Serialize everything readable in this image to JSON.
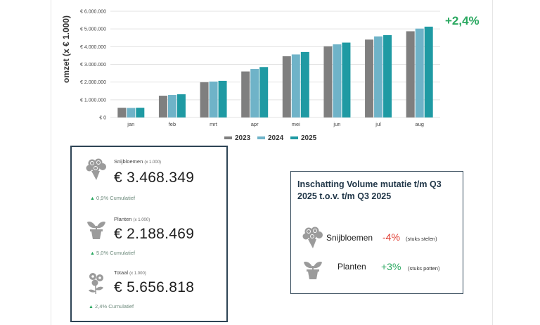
{
  "chart_data": {
    "type": "bar",
    "categories": [
      "jan",
      "feb",
      "mrt",
      "apr",
      "mei",
      "jun",
      "jul",
      "aug"
    ],
    "series": [
      {
        "name": "2023",
        "color": "#7f7f7f",
        "values": [
          550000,
          1230000,
          1990000,
          2600000,
          3460000,
          4020000,
          4400000,
          4870000
        ]
      },
      {
        "name": "2024",
        "color": "#6fb3c8",
        "values": [
          540000,
          1270000,
          2030000,
          2740000,
          3560000,
          4130000,
          4580000,
          5020000
        ]
      },
      {
        "name": "2025",
        "color": "#1f9aa3",
        "values": [
          550000,
          1310000,
          2070000,
          2850000,
          3700000,
          4230000,
          4650000,
          5130000
        ]
      }
    ],
    "ylabel": "omzet (x € 1.000)",
    "ylim": [
      0,
      6000000
    ],
    "yticks": [
      0,
      1000000,
      2000000,
      3000000,
      4000000,
      5000000,
      6000000
    ],
    "ytick_labels": [
      "€ 0",
      "€ 1.000.000",
      "€ 2.000.000",
      "€ 3.000.000",
      "€ 4.000.000",
      "€ 5.000.000",
      "€ 6.000.000"
    ],
    "grid": true,
    "legend_position": "bottom"
  },
  "growth": {
    "label": "+2,4%",
    "color": "#2aa860"
  },
  "summary": {
    "items": [
      {
        "icon": "flower-bouquet-icon",
        "label": "Snijbloemen",
        "unit": "(x 1.000)",
        "value": "€ 3.468.349",
        "change": "0,9%",
        "change_label": "Cumulatief"
      },
      {
        "icon": "potted-plant-icon",
        "label": "Planten",
        "unit": "(x 1.000)",
        "value": "€ 2.188.469",
        "change": "5,0%",
        "change_label": "Cumulatief"
      },
      {
        "icon": "flowers-icon",
        "label": "Totaal",
        "unit": "(x 1.000)",
        "value": "€ 5.656.818",
        "change": "2,4%",
        "change_label": "Cumulatief"
      }
    ]
  },
  "volume": {
    "title_line1": "Inschatting Volume mutatie t/m Q3",
    "title_line2": "2025 t.o.v. t/m Q3 2025",
    "rows": [
      {
        "icon": "flower-bouquet-icon",
        "name": "Snijbloemen",
        "pct": "-4%",
        "pct_color": "#e03c31",
        "unit": "(stuks stelen)"
      },
      {
        "icon": "potted-plant-icon",
        "name": "Planten",
        "pct": "+3%",
        "pct_color": "#2aa860",
        "unit": "(stuks potten)"
      }
    ]
  }
}
